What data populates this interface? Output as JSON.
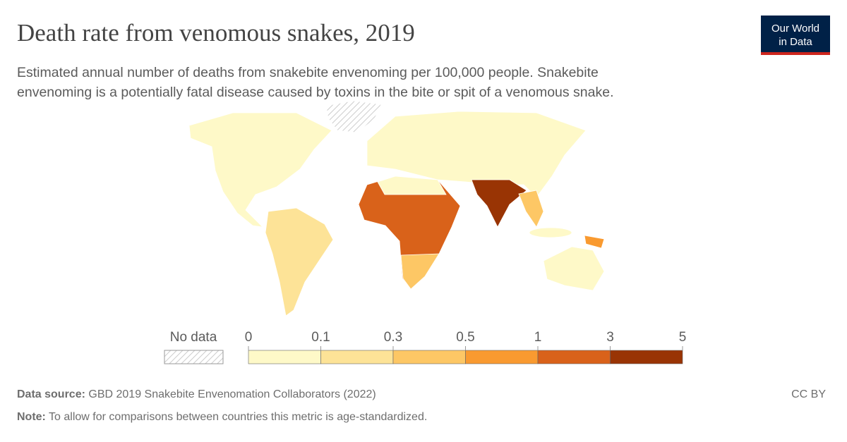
{
  "title": "Death rate from venomous snakes, 2019",
  "subtitle_lines": [
    "Estimated annual number of deaths from snakebite envenoming per 100,000 people. Snakebite",
    "envenoming is a potentially fatal disease caused by toxins in the bite or spit of a venomous snake."
  ],
  "logo": [
    "Our World",
    "in Data"
  ],
  "legend": {
    "no_data_label": "No data",
    "bins": [
      0,
      0.1,
      0.3,
      0.5,
      1,
      3,
      5
    ],
    "colors": [
      "#fef9c8",
      "#fde397",
      "#fdc765",
      "#f99a30",
      "#d9621a",
      "#993404"
    ]
  },
  "source_label": "Data source:",
  "source": "GBD 2019 Snakebite Envenomation Collaborators (2022)",
  "license": "CC BY",
  "note_label": "Note:",
  "note": "To allow for comparisons between countries this metric is age-standardized."
}
